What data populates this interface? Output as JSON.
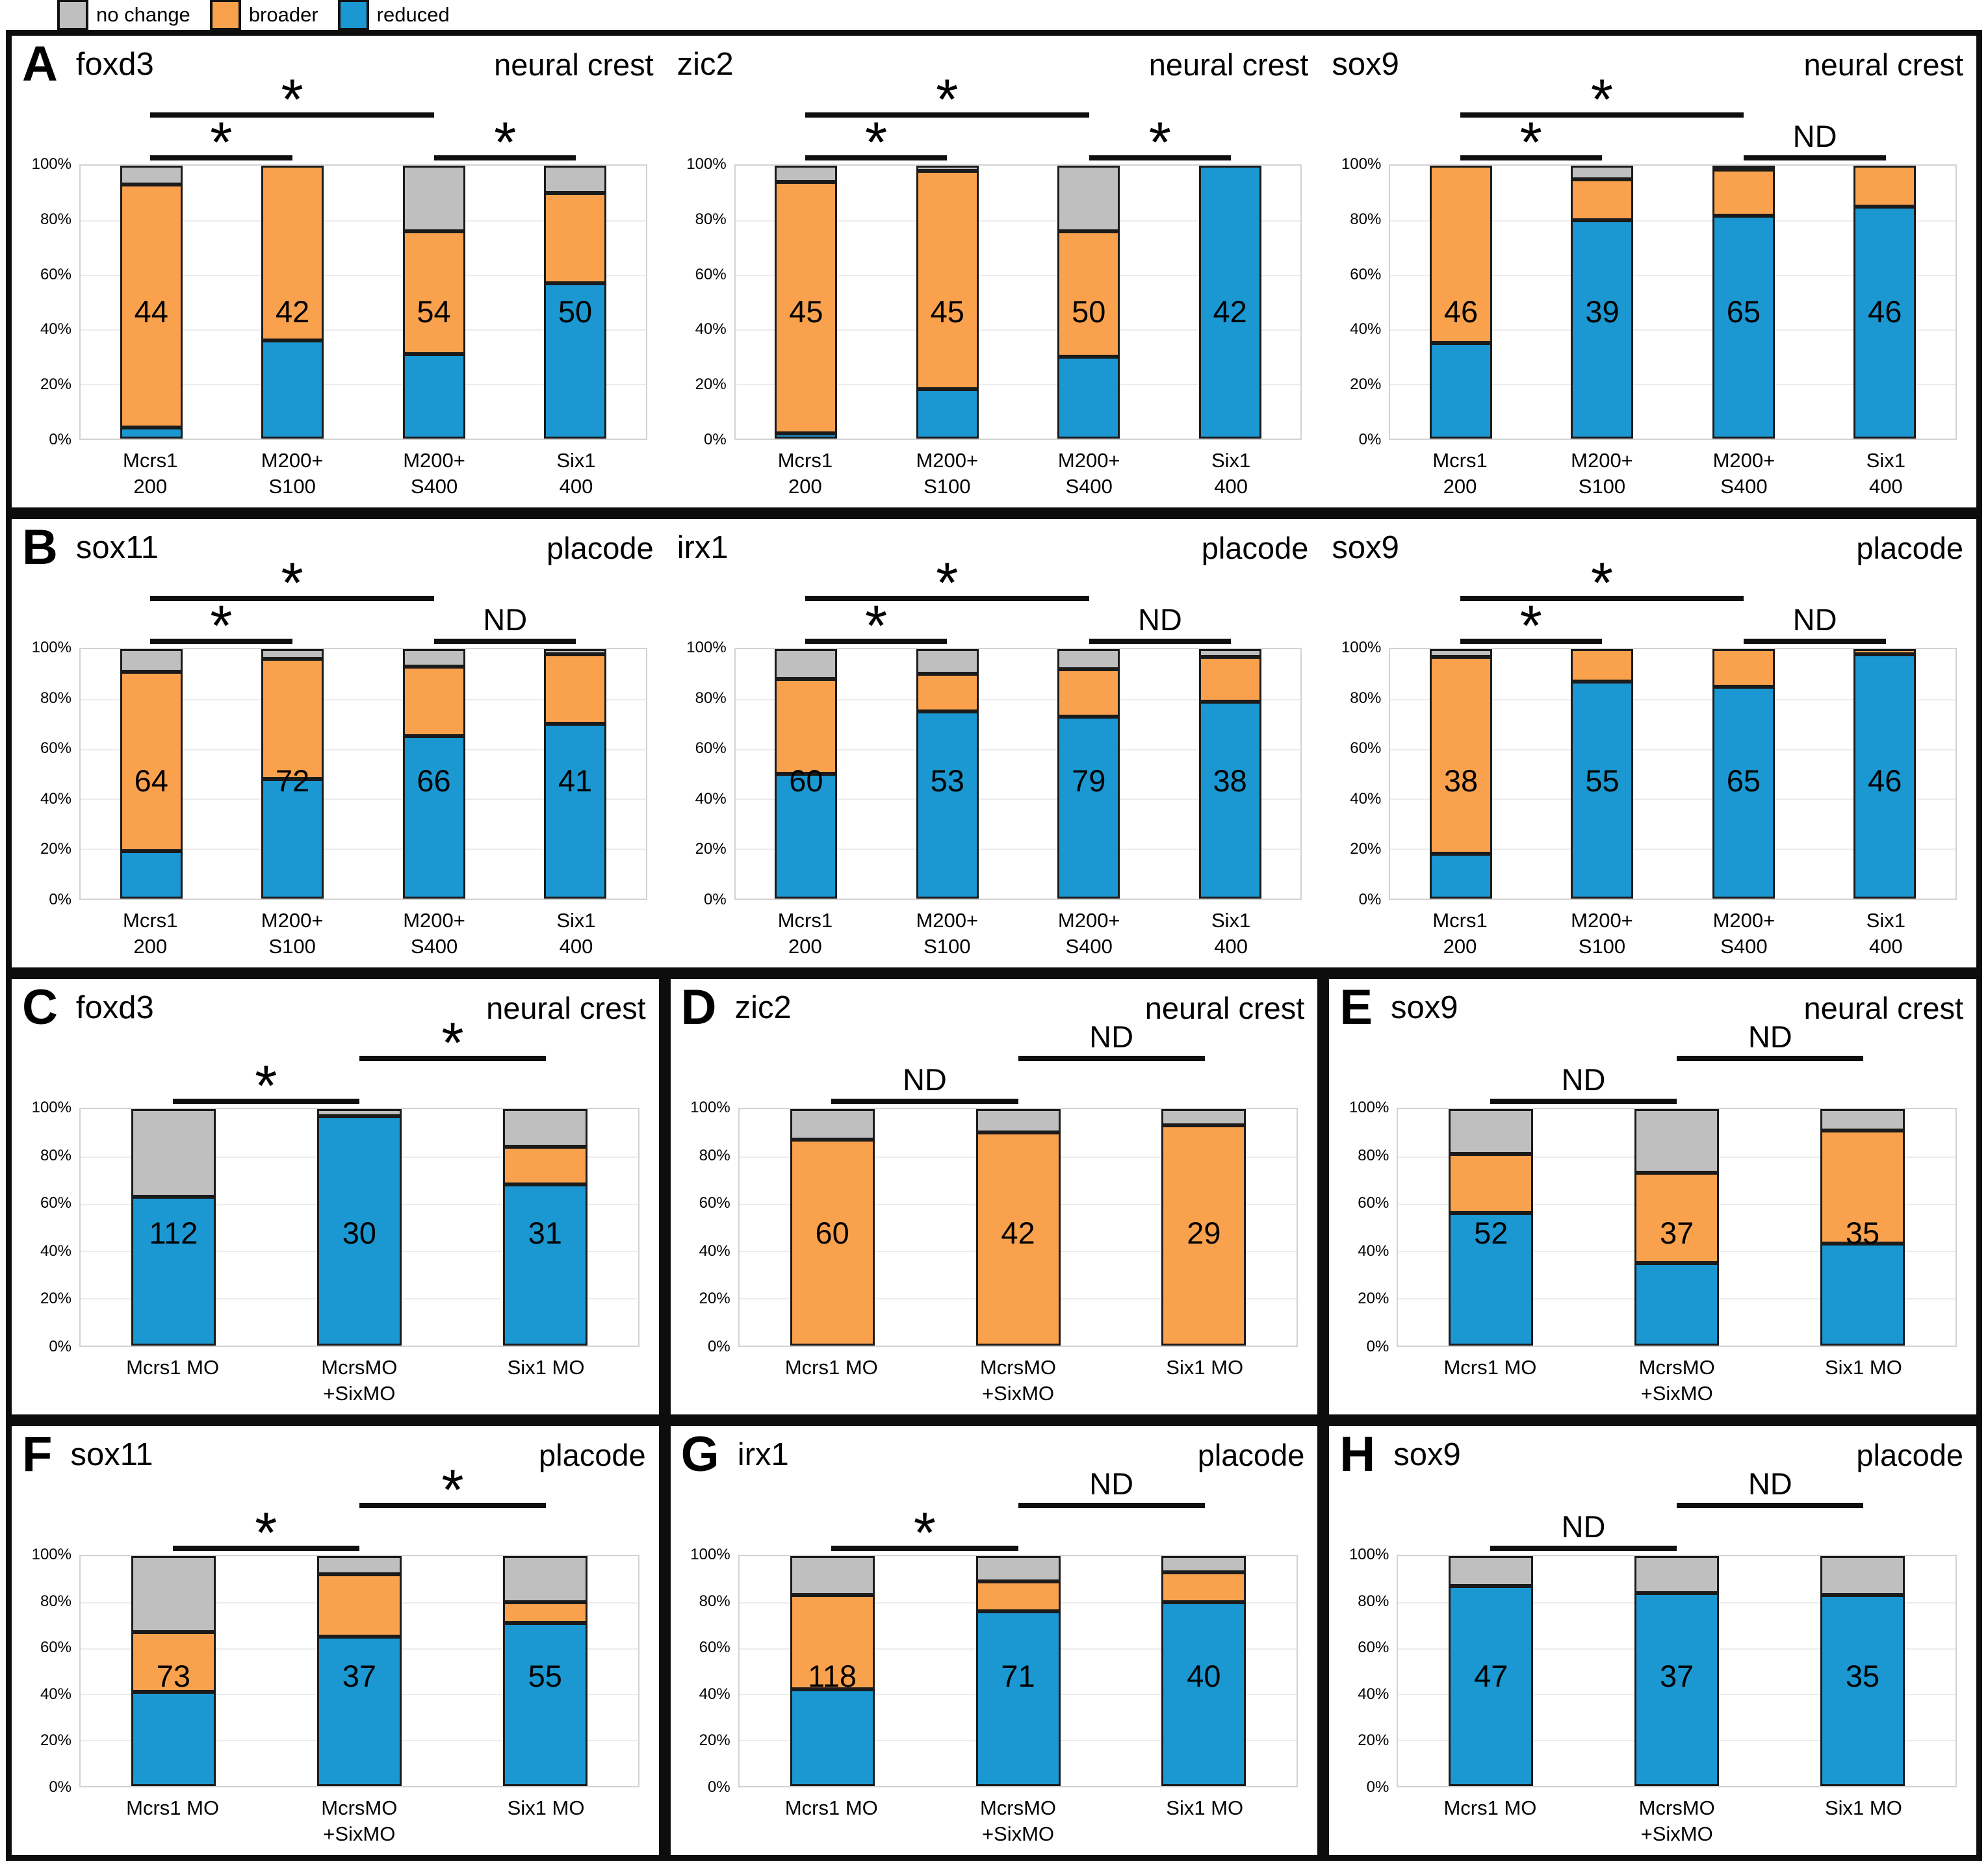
{
  "legend": {
    "items": [
      {
        "label": "no change",
        "color": "#BFBFBF"
      },
      {
        "label": "broader",
        "color": "#F9A14D"
      },
      {
        "label": "reduced",
        "color": "#1B97D1"
      }
    ]
  },
  "colors": {
    "reduced": "#1B97D1",
    "broader": "#F9A14D",
    "no_change": "#BFBFBF"
  },
  "y_axis": {
    "ticks": [
      "100%",
      "80%",
      "60%",
      "40%",
      "20%",
      "0%"
    ]
  },
  "layout": {
    "rows": [
      {
        "grouped": true,
        "css": "row-a",
        "charts": [
          0,
          1,
          2
        ]
      },
      {
        "grouped": true,
        "css": "row-b",
        "charts": [
          3,
          4,
          5
        ]
      },
      {
        "grouped": false,
        "css": "row-cde",
        "charts": [
          6,
          7,
          8
        ]
      },
      {
        "grouped": false,
        "css": "row-fgh",
        "charts": [
          9,
          10,
          11
        ]
      }
    ]
  },
  "chart_data": [
    {
      "panel": "A",
      "title": "foxd3",
      "tissue": "neural crest",
      "type": "bar",
      "stacked": true,
      "ylim": [
        0,
        100
      ],
      "categories": [
        [
          "Mcrs1",
          "200"
        ],
        [
          "M200+",
          "S100"
        ],
        [
          "M200+",
          "S400"
        ],
        [
          "Six1",
          "400"
        ]
      ],
      "series": [
        {
          "name": "reduced",
          "values": [
            4,
            36,
            31,
            57
          ]
        },
        {
          "name": "broader",
          "values": [
            89,
            64,
            45,
            33
          ]
        },
        {
          "name": "no change",
          "values": [
            7,
            0,
            24,
            10
          ]
        }
      ],
      "n": [
        44,
        42,
        54,
        50
      ],
      "sig": [
        {
          "from": 0,
          "to": 1,
          "label": "*",
          "level": 0
        },
        {
          "from": 0,
          "to": 2,
          "label": "*",
          "level": 1
        },
        {
          "from": 2,
          "to": 3,
          "label": "*",
          "level": 0
        }
      ]
    },
    {
      "panel": "",
      "title": "zic2",
      "tissue": "neural crest",
      "type": "bar",
      "stacked": true,
      "ylim": [
        0,
        100
      ],
      "categories": [
        [
          "Mcrs1",
          "200"
        ],
        [
          "M200+",
          "S100"
        ],
        [
          "M200+",
          "S400"
        ],
        [
          "Six1",
          "400"
        ]
      ],
      "series": [
        {
          "name": "reduced",
          "values": [
            2,
            18,
            30,
            100
          ]
        },
        {
          "name": "broader",
          "values": [
            92,
            80,
            46,
            0
          ]
        },
        {
          "name": "no change",
          "values": [
            6,
            2,
            24,
            0
          ]
        }
      ],
      "n": [
        45,
        45,
        50,
        42
      ],
      "sig": [
        {
          "from": 0,
          "to": 1,
          "label": "*",
          "level": 0
        },
        {
          "from": 0,
          "to": 2,
          "label": "*",
          "level": 1
        },
        {
          "from": 2,
          "to": 3,
          "label": "*",
          "level": 0
        }
      ]
    },
    {
      "panel": "",
      "title": "sox9",
      "tissue": "neural crest",
      "type": "bar",
      "stacked": true,
      "ylim": [
        0,
        100
      ],
      "categories": [
        [
          "Mcrs1",
          "200"
        ],
        [
          "M200+",
          "S100"
        ],
        [
          "M200+",
          "S400"
        ],
        [
          "Six1",
          "400"
        ]
      ],
      "series": [
        {
          "name": "reduced",
          "values": [
            35,
            80,
            82,
            85
          ]
        },
        {
          "name": "broader",
          "values": [
            65,
            15,
            17,
            15
          ]
        },
        {
          "name": "no change",
          "values": [
            0,
            5,
            1,
            0
          ]
        }
      ],
      "n": [
        46,
        39,
        65,
        46
      ],
      "sig": [
        {
          "from": 0,
          "to": 1,
          "label": "*",
          "level": 0
        },
        {
          "from": 0,
          "to": 2,
          "label": "*",
          "level": 1
        },
        {
          "from": 2,
          "to": 3,
          "label": "ND",
          "level": 0
        }
      ]
    },
    {
      "panel": "B",
      "title": "sox11",
      "tissue": "placode",
      "type": "bar",
      "stacked": true,
      "ylim": [
        0,
        100
      ],
      "categories": [
        [
          "Mcrs1",
          "200"
        ],
        [
          "M200+",
          "S100"
        ],
        [
          "M200+",
          "S400"
        ],
        [
          "Six1",
          "400"
        ]
      ],
      "series": [
        {
          "name": "reduced",
          "values": [
            19,
            48,
            65,
            70
          ]
        },
        {
          "name": "broader",
          "values": [
            72,
            48,
            28,
            28
          ]
        },
        {
          "name": "no change",
          "values": [
            9,
            4,
            7,
            2
          ]
        }
      ],
      "n": [
        64,
        72,
        66,
        41
      ],
      "sig": [
        {
          "from": 0,
          "to": 1,
          "label": "*",
          "level": 0
        },
        {
          "from": 0,
          "to": 2,
          "label": "*",
          "level": 1
        },
        {
          "from": 2,
          "to": 3,
          "label": "ND",
          "level": 0
        }
      ]
    },
    {
      "panel": "",
      "title": "irx1",
      "tissue": "placode",
      "type": "bar",
      "stacked": true,
      "ylim": [
        0,
        100
      ],
      "categories": [
        [
          "Mcrs1",
          "200"
        ],
        [
          "M200+",
          "S100"
        ],
        [
          "M200+",
          "S400"
        ],
        [
          "Six1",
          "400"
        ]
      ],
      "series": [
        {
          "name": "reduced",
          "values": [
            50,
            75,
            73,
            79
          ]
        },
        {
          "name": "broader",
          "values": [
            38,
            15,
            19,
            18
          ]
        },
        {
          "name": "no change",
          "values": [
            12,
            10,
            8,
            3
          ]
        }
      ],
      "n": [
        60,
        53,
        79,
        38
      ],
      "sig": [
        {
          "from": 0,
          "to": 1,
          "label": "*",
          "level": 0
        },
        {
          "from": 0,
          "to": 2,
          "label": "*",
          "level": 1
        },
        {
          "from": 2,
          "to": 3,
          "label": "ND",
          "level": 0
        }
      ]
    },
    {
      "panel": "",
      "title": "sox9",
      "tissue": "placode",
      "type": "bar",
      "stacked": true,
      "ylim": [
        0,
        100
      ],
      "categories": [
        [
          "Mcrs1",
          "200"
        ],
        [
          "M200+",
          "S100"
        ],
        [
          "M200+",
          "S400"
        ],
        [
          "Six1",
          "400"
        ]
      ],
      "series": [
        {
          "name": "reduced",
          "values": [
            18,
            87,
            85,
            98
          ]
        },
        {
          "name": "broader",
          "values": [
            79,
            13,
            15,
            2
          ]
        },
        {
          "name": "no change",
          "values": [
            3,
            0,
            0,
            0
          ]
        }
      ],
      "n": [
        38,
        55,
        65,
        46
      ],
      "sig": [
        {
          "from": 0,
          "to": 1,
          "label": "*",
          "level": 0
        },
        {
          "from": 0,
          "to": 2,
          "label": "*",
          "level": 1
        },
        {
          "from": 2,
          "to": 3,
          "label": "ND",
          "level": 0
        }
      ]
    },
    {
      "panel": "C",
      "title": "foxd3",
      "tissue": "neural crest",
      "type": "bar",
      "stacked": true,
      "ylim": [
        0,
        100
      ],
      "categories": [
        [
          "Mcrs1 MO"
        ],
        [
          "McrsMO",
          "+SixMO"
        ],
        [
          "Six1 MO"
        ]
      ],
      "series": [
        {
          "name": "reduced",
          "values": [
            63,
            97,
            68
          ]
        },
        {
          "name": "broader",
          "values": [
            0,
            0,
            16
          ]
        },
        {
          "name": "no change",
          "values": [
            37,
            3,
            16
          ]
        }
      ],
      "n": [
        112,
        30,
        31
      ],
      "sig": [
        {
          "from": 0,
          "to": 1,
          "label": "*",
          "level": 0
        },
        {
          "from": 1,
          "to": 2,
          "label": "*",
          "level": 1
        }
      ]
    },
    {
      "panel": "D",
      "title": "zic2",
      "tissue": "neural crest",
      "type": "bar",
      "stacked": true,
      "ylim": [
        0,
        100
      ],
      "categories": [
        [
          "Mcrs1 MO"
        ],
        [
          "McrsMO",
          "+SixMO"
        ],
        [
          "Six1 MO"
        ]
      ],
      "series": [
        {
          "name": "reduced",
          "values": [
            0,
            0,
            0
          ]
        },
        {
          "name": "broader",
          "values": [
            87,
            90,
            93
          ]
        },
        {
          "name": "no change",
          "values": [
            13,
            10,
            7
          ]
        }
      ],
      "n": [
        60,
        42,
        29
      ],
      "sig": [
        {
          "from": 0,
          "to": 1,
          "label": "ND",
          "level": 0
        },
        {
          "from": 1,
          "to": 2,
          "label": "ND",
          "level": 1
        }
      ]
    },
    {
      "panel": "E",
      "title": "sox9",
      "tissue": "neural crest",
      "type": "bar",
      "stacked": true,
      "ylim": [
        0,
        100
      ],
      "categories": [
        [
          "Mcrs1 MO"
        ],
        [
          "McrsMO",
          "+SixMO"
        ],
        [
          "Six1 MO"
        ]
      ],
      "series": [
        {
          "name": "reduced",
          "values": [
            56,
            35,
            43
          ]
        },
        {
          "name": "broader",
          "values": [
            25,
            38,
            48
          ]
        },
        {
          "name": "no change",
          "values": [
            19,
            27,
            9
          ]
        }
      ],
      "n": [
        52,
        37,
        35
      ],
      "sig": [
        {
          "from": 0,
          "to": 1,
          "label": "ND",
          "level": 0
        },
        {
          "from": 1,
          "to": 2,
          "label": "ND",
          "level": 1
        }
      ]
    },
    {
      "panel": "F",
      "title": "sox11",
      "tissue": "placode",
      "type": "bar",
      "stacked": true,
      "ylim": [
        0,
        100
      ],
      "categories": [
        [
          "Mcrs1 MO"
        ],
        [
          "McrsMO",
          "+SixMO"
        ],
        [
          "Six1 MO"
        ]
      ],
      "series": [
        {
          "name": "reduced",
          "values": [
            41,
            65,
            71
          ]
        },
        {
          "name": "broader",
          "values": [
            26,
            27,
            9
          ]
        },
        {
          "name": "no change",
          "values": [
            33,
            8,
            20
          ]
        }
      ],
      "n": [
        73,
        37,
        55
      ],
      "sig": [
        {
          "from": 0,
          "to": 1,
          "label": "*",
          "level": 0
        },
        {
          "from": 1,
          "to": 2,
          "label": "*",
          "level": 1
        }
      ]
    },
    {
      "panel": "G",
      "title": "irx1",
      "tissue": "placode",
      "type": "bar",
      "stacked": true,
      "ylim": [
        0,
        100
      ],
      "categories": [
        [
          "Mcrs1 MO"
        ],
        [
          "McrsMO",
          "+SixMO"
        ],
        [
          "Six1 MO"
        ]
      ],
      "series": [
        {
          "name": "reduced",
          "values": [
            42,
            76,
            80
          ]
        },
        {
          "name": "broader",
          "values": [
            41,
            13,
            13
          ]
        },
        {
          "name": "no change",
          "values": [
            17,
            11,
            7
          ]
        }
      ],
      "n": [
        118,
        71,
        40
      ],
      "sig": [
        {
          "from": 0,
          "to": 1,
          "label": "*",
          "level": 0
        },
        {
          "from": 1,
          "to": 2,
          "label": "ND",
          "level": 1
        }
      ]
    },
    {
      "panel": "H",
      "title": "sox9",
      "tissue": "placode",
      "type": "bar",
      "stacked": true,
      "ylim": [
        0,
        100
      ],
      "categories": [
        [
          "Mcrs1 MO"
        ],
        [
          "McrsMO",
          "+SixMO"
        ],
        [
          "Six1 MO"
        ]
      ],
      "series": [
        {
          "name": "reduced",
          "values": [
            87,
            84,
            83
          ]
        },
        {
          "name": "broader",
          "values": [
            0,
            0,
            0
          ]
        },
        {
          "name": "no change",
          "values": [
            13,
            16,
            17
          ]
        }
      ],
      "n": [
        47,
        37,
        35
      ],
      "sig": [
        {
          "from": 0,
          "to": 1,
          "label": "ND",
          "level": 0
        },
        {
          "from": 1,
          "to": 2,
          "label": "ND",
          "level": 1
        }
      ]
    }
  ]
}
